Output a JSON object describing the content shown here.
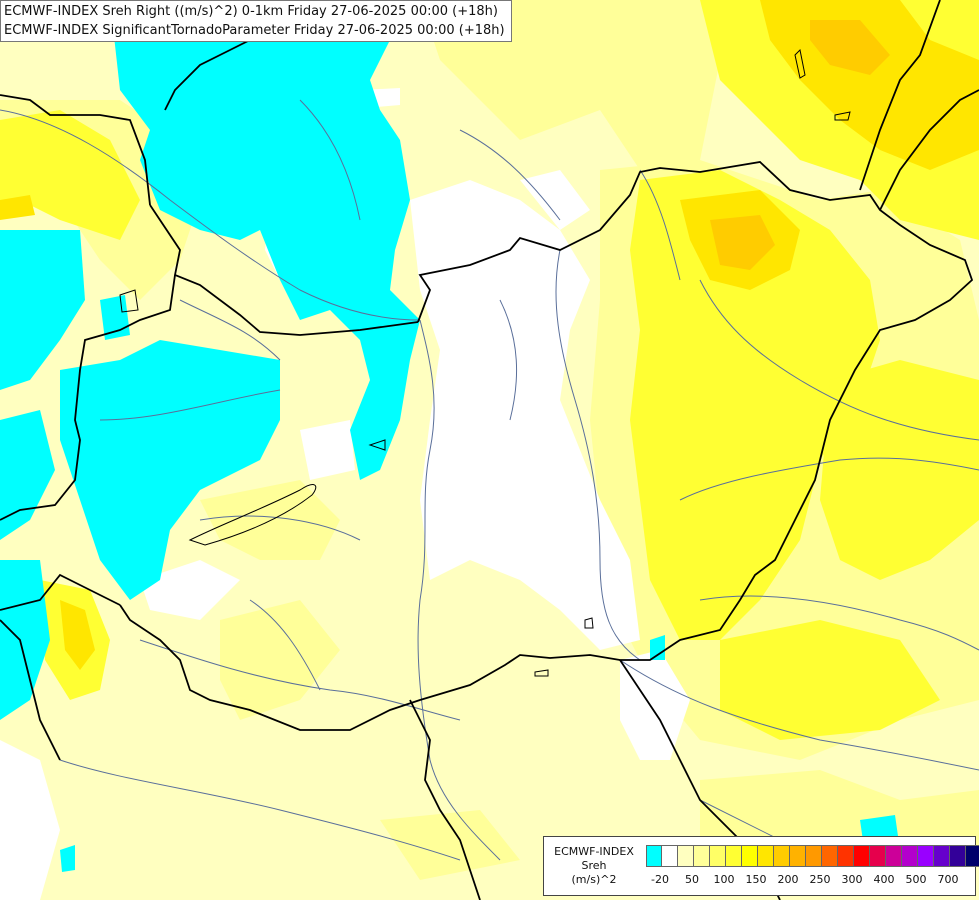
{
  "title": {
    "line1": "ECMWF-INDEX Sreh Right ((m/s)^2) 0-1km Friday 27-06-2025 00:00 (+18h)",
    "line2": "ECMWF-INDEX SignificantTornadoParameter Friday 27-06-2025 00:00 (+18h)"
  },
  "legend": {
    "label_line1": "ECMWF-INDEX",
    "label_line2": "Sreh",
    "label_line3": "(m/s)^2",
    "colors": [
      "#00ffff",
      "#ffffff",
      "#ffffc0",
      "#ffff99",
      "#ffff66",
      "#ffff33",
      "#ffff00",
      "#ffe600",
      "#ffcc00",
      "#ffb200",
      "#ff9900",
      "#ff6600",
      "#ff3300",
      "#ff0000",
      "#e6004c",
      "#cc0099",
      "#b300cc",
      "#9900ff",
      "#6600cc",
      "#330099",
      "#00006b"
    ],
    "ticks": [
      "-20",
      "50",
      "100",
      "150",
      "200",
      "250",
      "300",
      "400",
      "500",
      "700"
    ]
  },
  "colors": {
    "cyan": "#00ffff",
    "white": "#ffffff",
    "pale_yellow": "#ffffc0",
    "light_yellow": "#ffff99",
    "yellow": "#ffff33",
    "strong_yellow": "#ffff00",
    "gold": "#ffe600",
    "orange_yellow": "#ffcc00",
    "border": "#000000",
    "river": "#5a6f9a"
  }
}
